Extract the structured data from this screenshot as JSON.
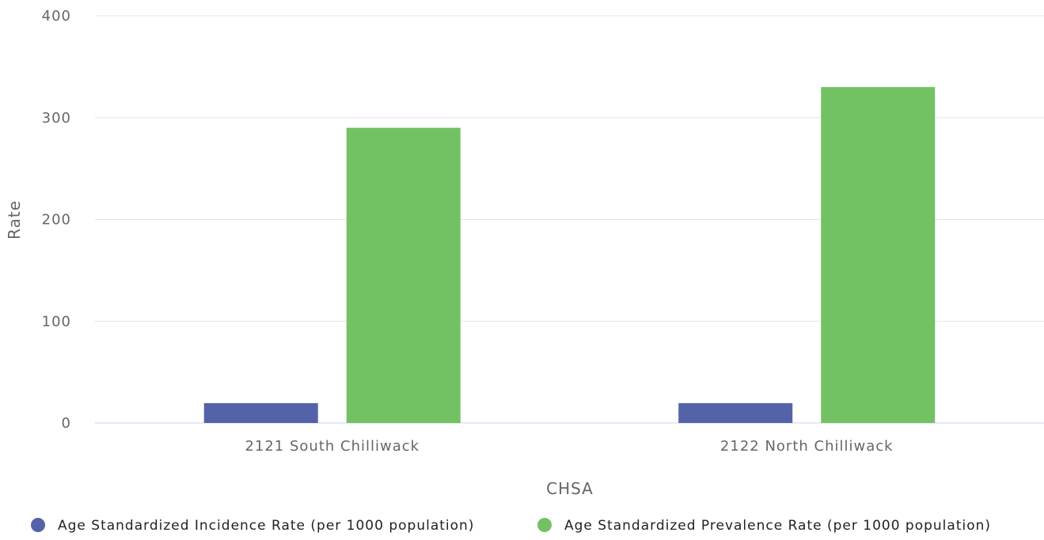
{
  "chart_data": {
    "type": "bar",
    "title": "",
    "xlabel": "CHSA",
    "ylabel": "Rate",
    "ylim": [
      0,
      400
    ],
    "yticks": [
      0,
      100,
      200,
      300,
      400
    ],
    "grid": true,
    "legend_position": "bottom",
    "categories": [
      "2121 South Chilliwack",
      "2122 North Chilliwack"
    ],
    "series": [
      {
        "name": "Age Standardized Incidence Rate (per 1000 population)",
        "color": "#5463a8",
        "values": [
          19.5,
          19.5
        ]
      },
      {
        "name": "Age Standardized Prevalence Rate (per 1000 population)",
        "color": "#73c163",
        "values": [
          290,
          330
        ]
      }
    ]
  }
}
